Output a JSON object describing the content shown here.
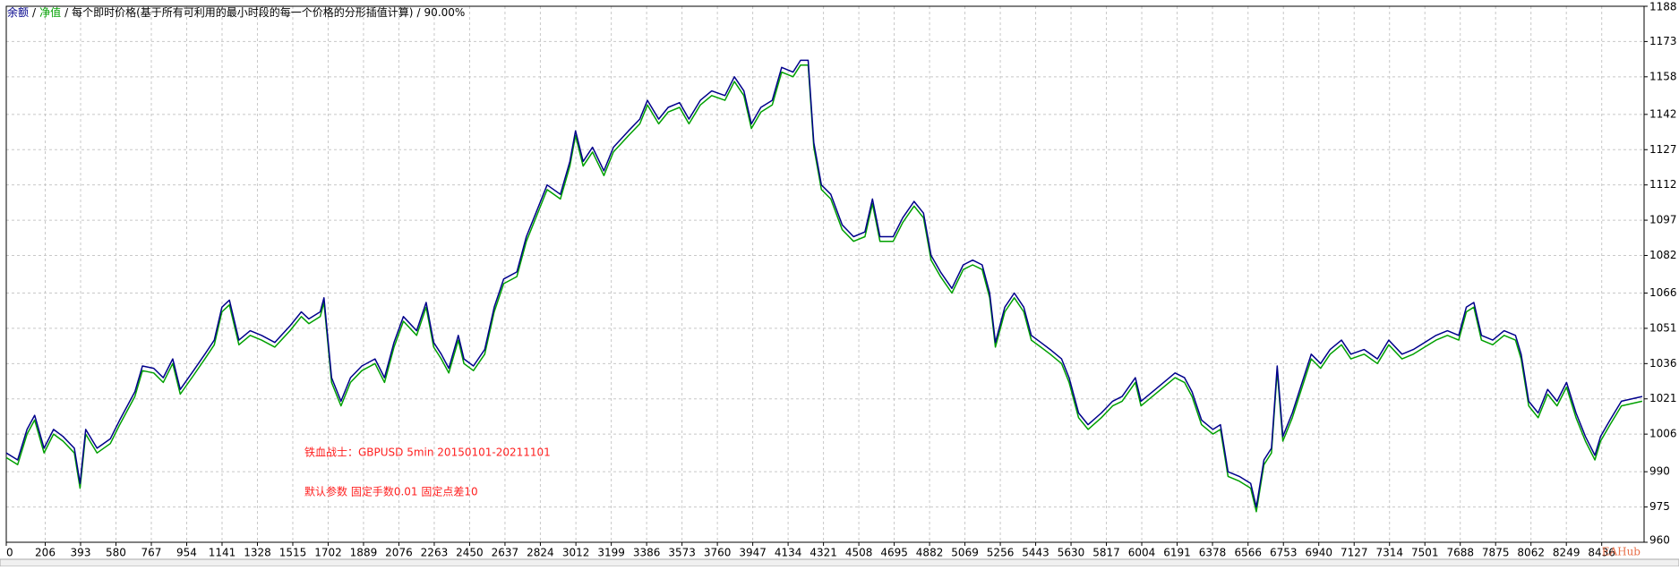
{
  "chart_data": {
    "type": "line",
    "series": [
      {
        "name": "余额",
        "color": "#00008b",
        "values": [
          998,
          995,
          1008,
          1014,
          1000,
          1008,
          1005,
          1000,
          985,
          1008,
          1000,
          1004,
          1012,
          1024,
          1035,
          1034,
          1030,
          1038,
          1025,
          1033,
          1040,
          1046,
          1060,
          1063,
          1046,
          1050,
          1048,
          1045,
          1052,
          1058,
          1055,
          1058,
          1064,
          1030,
          1020,
          1030,
          1035,
          1038,
          1030,
          1045,
          1056,
          1050,
          1062,
          1045,
          1040,
          1034,
          1048,
          1038,
          1035,
          1042,
          1060,
          1072,
          1075,
          1090,
          1100,
          1112,
          1108,
          1122,
          1135,
          1122,
          1128,
          1118,
          1128,
          1135,
          1140,
          1148,
          1140,
          1145,
          1147,
          1140,
          1148,
          1152,
          1150,
          1158,
          1152,
          1138,
          1145,
          1148,
          1162,
          1160,
          1165,
          1165,
          1130,
          1112,
          1108,
          1095,
          1090,
          1092,
          1106,
          1090,
          1090,
          1098,
          1105,
          1100,
          1082,
          1075,
          1068,
          1078,
          1080,
          1078,
          1066,
          1045,
          1060,
          1066,
          1060,
          1048,
          1045,
          1042,
          1038,
          1030,
          1015,
          1010,
          1015,
          1020,
          1022,
          1030,
          1020,
          1024,
          1028,
          1032,
          1030,
          1024,
          1012,
          1008,
          1010,
          990,
          988,
          985,
          975,
          995,
          1000,
          1035,
          1005,
          1015,
          1025,
          1040,
          1036,
          1042,
          1046,
          1040,
          1042,
          1038,
          1046,
          1040,
          1042,
          1045,
          1048,
          1050,
          1048,
          1060,
          1062,
          1048,
          1046,
          1050,
          1048,
          1040,
          1020,
          1015,
          1025,
          1020,
          1028,
          1015,
          1005,
          997,
          1005,
          1012,
          1020,
          1022
        ]
      },
      {
        "name": "净值",
        "color": "#00a000",
        "values": [
          996,
          993,
          1006,
          1012,
          998,
          1006,
          1003,
          998,
          983,
          1006,
          998,
          1002,
          1010,
          1022,
          1033,
          1032,
          1028,
          1036,
          1023,
          1031,
          1038,
          1044,
          1058,
          1061,
          1044,
          1048,
          1046,
          1043,
          1050,
          1056,
          1053,
          1056,
          1062,
          1028,
          1018,
          1028,
          1033,
          1036,
          1028,
          1043,
          1054,
          1048,
          1060,
          1043,
          1038,
          1032,
          1046,
          1036,
          1033,
          1040,
          1058,
          1070,
          1073,
          1088,
          1098,
          1110,
          1106,
          1120,
          1133,
          1120,
          1126,
          1116,
          1126,
          1133,
          1138,
          1146,
          1138,
          1143,
          1145,
          1138,
          1146,
          1150,
          1148,
          1156,
          1150,
          1136,
          1143,
          1146,
          1160,
          1158,
          1163,
          1163,
          1128,
          1110,
          1106,
          1093,
          1088,
          1090,
          1104,
          1088,
          1088,
          1096,
          1103,
          1098,
          1080,
          1073,
          1066,
          1076,
          1078,
          1076,
          1064,
          1043,
          1058,
          1064,
          1058,
          1046,
          1043,
          1040,
          1036,
          1028,
          1013,
          1008,
          1013,
          1018,
          1020,
          1028,
          1018,
          1022,
          1026,
          1030,
          1028,
          1022,
          1010,
          1006,
          1008,
          988,
          986,
          983,
          973,
          993,
          998,
          1033,
          1003,
          1013,
          1023,
          1038,
          1034,
          1040,
          1044,
          1038,
          1040,
          1036,
          1044,
          1038,
          1040,
          1043,
          1046,
          1048,
          1046,
          1058,
          1060,
          1046,
          1044,
          1048,
          1046,
          1038,
          1018,
          1013,
          1023,
          1018,
          1026,
          1013,
          1003,
          995,
          1003,
          1010,
          1018,
          1020
        ]
      }
    ],
    "x": [
      0,
      60,
      110,
      150,
      200,
      250,
      300,
      360,
      390,
      420,
      480,
      550,
      600,
      680,
      720,
      780,
      830,
      880,
      920,
      990,
      1050,
      1100,
      1140,
      1180,
      1230,
      1290,
      1350,
      1420,
      1500,
      1560,
      1600,
      1660,
      1680,
      1720,
      1770,
      1820,
      1880,
      1950,
      2000,
      2050,
      2100,
      2170,
      2220,
      2260,
      2300,
      2340,
      2390,
      2420,
      2470,
      2530,
      2580,
      2630,
      2700,
      2750,
      2800,
      2860,
      2930,
      2980,
      3010,
      3050,
      3100,
      3160,
      3210,
      3290,
      3350,
      3390,
      3450,
      3500,
      3560,
      3610,
      3670,
      3730,
      3800,
      3850,
      3900,
      3940,
      3990,
      4050,
      4100,
      4160,
      4200,
      4240,
      4270,
      4310,
      4360,
      4420,
      4480,
      4540,
      4580,
      4620,
      4690,
      4740,
      4800,
      4850,
      4890,
      4940,
      5000,
      5060,
      5110,
      5160,
      5200,
      5230,
      5280,
      5330,
      5380,
      5420,
      5470,
      5520,
      5580,
      5620,
      5670,
      5720,
      5790,
      5850,
      5900,
      5970,
      6000,
      6060,
      6120,
      6180,
      6230,
      6270,
      6320,
      6380,
      6420,
      6460,
      6520,
      6580,
      6610,
      6650,
      6690,
      6720,
      6750,
      6800,
      6840,
      6900,
      6950,
      7000,
      7060,
      7110,
      7180,
      7250,
      7310,
      7380,
      7440,
      7500,
      7560,
      7620,
      7680,
      7720,
      7760,
      7800,
      7860,
      7920,
      7980,
      8010,
      8050,
      8100,
      8150,
      8200,
      8250,
      8300,
      8350,
      8400,
      8430,
      8480,
      8540,
      8650
    ],
    "xlim": [
      0,
      8660
    ],
    "xticks": [
      0,
      206,
      393,
      580,
      767,
      954,
      1141,
      1328,
      1515,
      1702,
      1889,
      2076,
      2263,
      2450,
      2637,
      2824,
      3012,
      3199,
      3386,
      3573,
      3760,
      3947,
      4134,
      4321,
      4508,
      4695,
      4882,
      5069,
      5256,
      5443,
      5630,
      5817,
      6004,
      6191,
      6378,
      6566,
      6753,
      6940,
      7127,
      7314,
      7501,
      7688,
      7875,
      8062,
      8249,
      8436
    ],
    "ylim": [
      960,
      1188
    ],
    "yticks": [
      960,
      975,
      990,
      1006,
      1021,
      1036,
      1051,
      1066,
      1082,
      1097,
      1112,
      1127,
      1142,
      1158,
      1173,
      1188
    ],
    "grid": true,
    "separator": "/",
    "subtitle": "每个即时价格(基于所有可利用的最小时段的每一个价格的分形插值计算)",
    "quality": "90.00%",
    "annotations": [
      "铁血战士：GBPUSD 5min 20150101-20211101",
      "默认参数 固定手数0.01 固定点差10"
    ],
    "watermark": "EAHub"
  }
}
